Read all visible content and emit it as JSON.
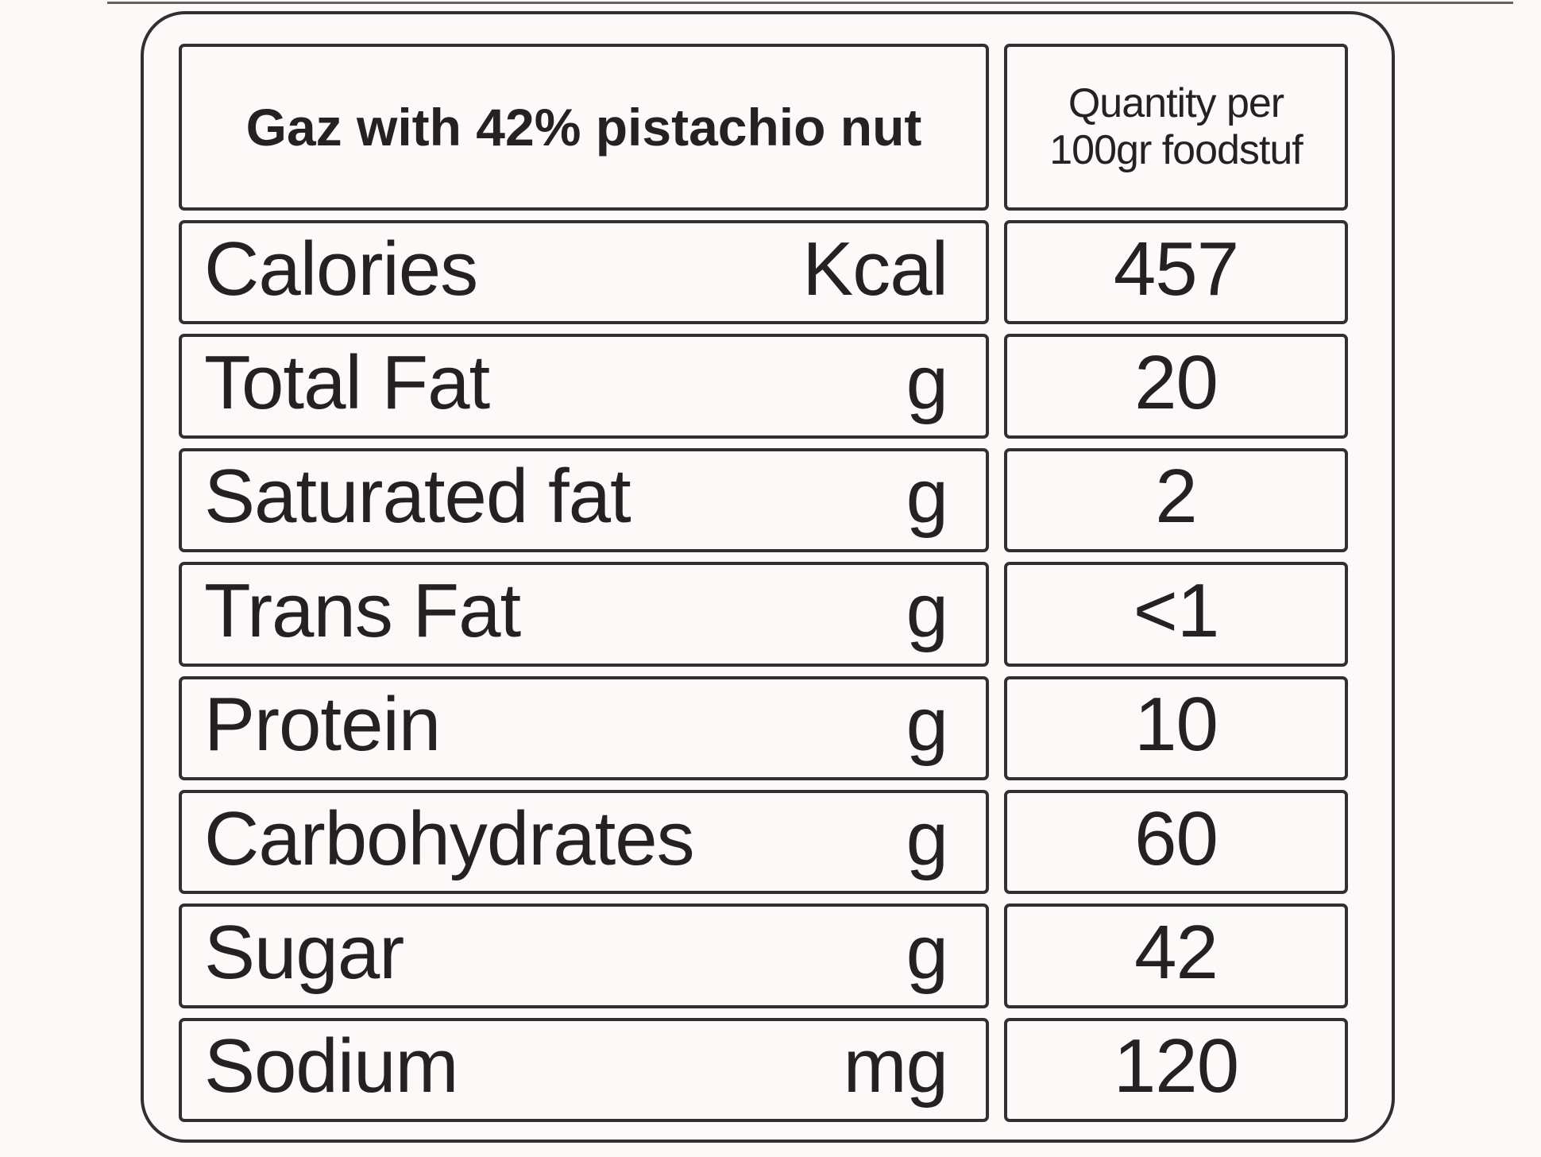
{
  "label": {
    "title": "Gaz with 42% pistachio nut",
    "quantity_header": {
      "line1": "Quantity per",
      "line2": "100gr foodstuf"
    },
    "rows": [
      {
        "name": "Calories",
        "unit": "Kcal",
        "value": "457"
      },
      {
        "name": "Total Fat",
        "unit": "g",
        "value": "20"
      },
      {
        "name": "Saturated fat",
        "unit": "g",
        "value": "2"
      },
      {
        "name": "Trans Fat",
        "unit": "g",
        "value": "<1"
      },
      {
        "name": "Protein",
        "unit": "g",
        "value": "10"
      },
      {
        "name": "Carbohydrates",
        "unit": "g",
        "value": "60"
      },
      {
        "name": "Sugar",
        "unit": "g",
        "value": "42"
      },
      {
        "name": "Sodium",
        "unit": "mg",
        "value": "120"
      }
    ],
    "colors": {
      "ink": "#272023",
      "border": "#352d30",
      "paper": "#fbfaf8"
    }
  }
}
